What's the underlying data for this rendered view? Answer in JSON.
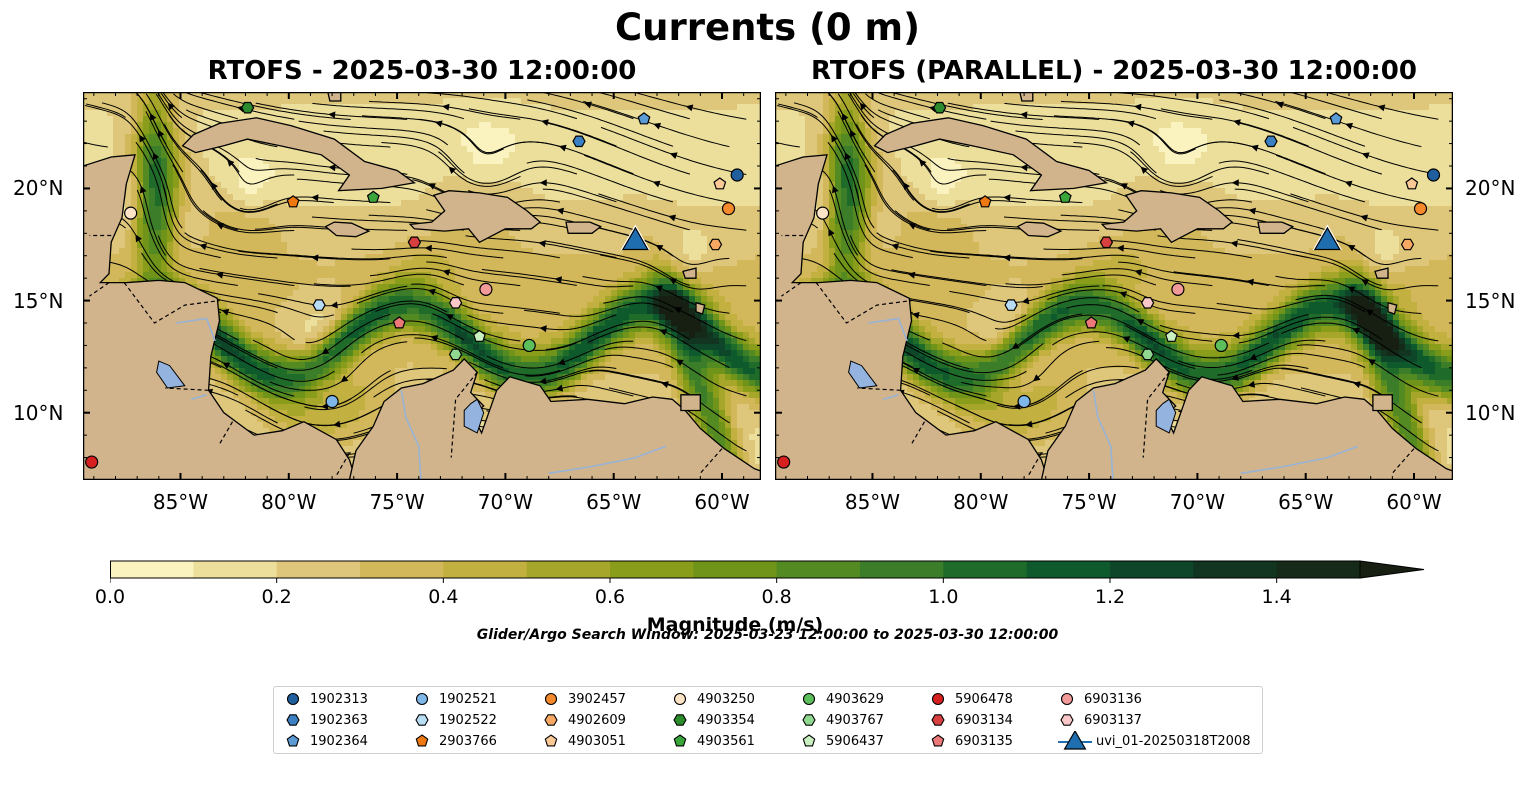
{
  "figure": {
    "suptitle": "Currents (0 m)",
    "panels": [
      {
        "title": "RTOFS - 2025-03-30 12:00:00"
      },
      {
        "title": "RTOFS (PARALLEL) - 2025-03-30 12:00:00"
      }
    ],
    "map_extent": {
      "lon": [
        -89.5,
        -58.2
      ],
      "lat": [
        7.0,
        24.3
      ]
    },
    "x_ticks": [
      {
        "lon": -85,
        "label": "85°W"
      },
      {
        "lon": -80,
        "label": "80°W"
      },
      {
        "lon": -75,
        "label": "75°W"
      },
      {
        "lon": -70,
        "label": "70°W"
      },
      {
        "lon": -65,
        "label": "65°W"
      },
      {
        "lon": -60,
        "label": "60°W"
      }
    ],
    "y_ticks": [
      {
        "lat": 20,
        "label": "20°N"
      },
      {
        "lat": 15,
        "label": "15°N"
      },
      {
        "lat": 10,
        "label": "10°N"
      }
    ],
    "search_window": "Glider/Argo Search Window: 2025-03-23 12:00:00 to 2025-03-30 12:00:00"
  },
  "colorbar": {
    "label": "Magnitude (m/s)",
    "min": 0.0,
    "max": 1.5,
    "extend": "max",
    "ticks": [
      "0.0",
      "0.2",
      "0.4",
      "0.6",
      "0.8",
      "1.0",
      "1.2",
      "1.4"
    ],
    "tick_values": [
      0.0,
      0.2,
      0.4,
      0.6,
      0.8,
      1.0,
      1.2,
      1.4
    ],
    "colors": [
      "#faf3bf",
      "#ecdf9c",
      "#dec77a",
      "#d2b85a",
      "#c2b040",
      "#a5a62a",
      "#8a9d1a",
      "#6f9419",
      "#548a22",
      "#3b7d28",
      "#1f6b2a",
      "#0f5a2c",
      "#0d4628",
      "#113520",
      "#152a18",
      "#161f12"
    ]
  },
  "platforms": [
    {
      "id": "1902313",
      "marker": "circle",
      "color": "#1f5f9e",
      "lon": -59.3,
      "lat": 20.6,
      "lon_par": -59.1,
      "lat_par": 20.6
    },
    {
      "id": "1902363",
      "marker": "hexagon",
      "color": "#3a80c2",
      "lon": -66.6,
      "lat": 22.1
    },
    {
      "id": "1902364",
      "marker": "pentagon",
      "color": "#5b9bd5",
      "lon": -63.6,
      "lat": 23.1
    },
    {
      "id": "1902521",
      "marker": "circle",
      "color": "#7fb8e8",
      "lon": -78.0,
      "lat": 10.5
    },
    {
      "id": "1902522",
      "marker": "hexagon",
      "color": "#b9dcf5",
      "lon": -78.6,
      "lat": 14.8
    },
    {
      "id": "2903766",
      "marker": "pentagon",
      "color": "#f07810",
      "lon": -79.8,
      "lat": 19.4
    },
    {
      "id": "3902457",
      "marker": "circle",
      "color": "#f58a2c",
      "lon": -59.7,
      "lat": 19.1
    },
    {
      "id": "4902609",
      "marker": "hexagon",
      "color": "#f7a964",
      "lon": -60.3,
      "lat": 17.5
    },
    {
      "id": "4903051",
      "marker": "pentagon",
      "color": "#fbc996",
      "lon": -60.1,
      "lat": 20.2
    },
    {
      "id": "4903250",
      "marker": "circle",
      "color": "#fde3c6",
      "lon": -87.3,
      "lat": 18.9
    },
    {
      "id": "4903354",
      "marker": "hexagon",
      "color": "#2c8b2c",
      "lon": -81.9,
      "lat": 23.6
    },
    {
      "id": "4903561",
      "marker": "pentagon",
      "color": "#3aa63a",
      "lon": -76.1,
      "lat": 19.6
    },
    {
      "id": "4903629",
      "marker": "circle",
      "color": "#5cbf5c",
      "lon": -68.9,
      "lat": 13.0
    },
    {
      "id": "4903767",
      "marker": "hexagon",
      "color": "#90d890",
      "lon": -72.3,
      "lat": 12.6
    },
    {
      "id": "5906437",
      "marker": "pentagon",
      "color": "#c9f0c0",
      "lon": -71.2,
      "lat": 13.4
    },
    {
      "id": "5906478",
      "marker": "circle",
      "color": "#d62020",
      "lon": -89.1,
      "lat": 7.8
    },
    {
      "id": "6903134",
      "marker": "hexagon",
      "color": "#d84040",
      "lon": -74.2,
      "lat": 17.6
    },
    {
      "id": "6903135",
      "marker": "pentagon",
      "color": "#ec7878",
      "lon": -74.9,
      "lat": 14.0
    },
    {
      "id": "6903136",
      "marker": "circle",
      "color": "#f29a9a",
      "lon": -70.9,
      "lat": 15.5
    },
    {
      "id": "6903137",
      "marker": "hexagon",
      "color": "#fac8c8",
      "lon": -72.3,
      "lat": 14.9
    },
    {
      "id": "uvi_01-20250318T2008",
      "marker": "triangle",
      "color": "#1f6fb0",
      "lon": -64.0,
      "lat": 17.5
    }
  ]
}
